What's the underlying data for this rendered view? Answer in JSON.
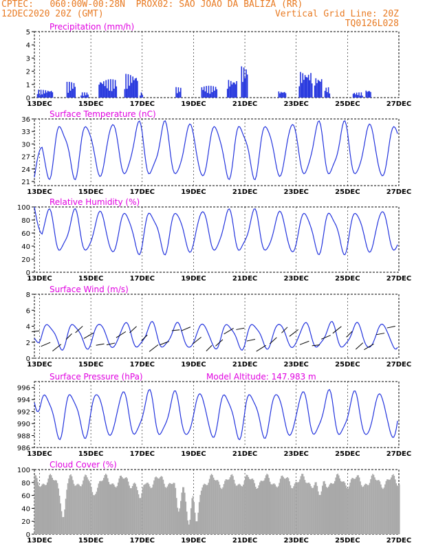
{
  "header": {
    "line1_left": "CPTEC:   060:00W-00:28N  PROX02: SAO JOAO DA BALIZA (RR)",
    "line2_left": "12DEC2020 20Z (GMT)",
    "line2_right": "Vertical Grid Line: 20Z",
    "line3_right": "TQ0126L028"
  },
  "colors": {
    "header": "#e87a22",
    "title": "#e000e0",
    "line": "#2233dd",
    "cloud": "#a9a9a9",
    "grid": "#000000"
  },
  "x_dates": [
    "13DEC",
    "15DEC",
    "17DEC",
    "19DEC",
    "21DEC",
    "23DEC",
    "25DEC",
    "27DEC"
  ],
  "chart_data": [
    {
      "id": "precip",
      "type": "bar",
      "title": "Precipitation (mm/h)",
      "ylim": [
        0,
        5
      ],
      "yticks": [
        0,
        1,
        2,
        3,
        4,
        5
      ],
      "series": [
        {
          "segments": [
            [
              12.9,
              13.5,
              0.6
            ],
            [
              14.05,
              14.4,
              1.2
            ],
            [
              14.6,
              14.9,
              0.4
            ],
            [
              15.3,
              16.0,
              1.4
            ],
            [
              16.3,
              16.8,
              1.8
            ],
            [
              16.9,
              17.0,
              0.4
            ],
            [
              18.3,
              18.5,
              0.8
            ],
            [
              19.3,
              19.9,
              0.9
            ],
            [
              20.3,
              20.7,
              1.4
            ],
            [
              20.85,
              21.1,
              2.4
            ],
            [
              22.3,
              22.6,
              0.5
            ],
            [
              23.1,
              23.6,
              2.0
            ],
            [
              23.7,
              24.0,
              1.6
            ],
            [
              24.1,
              24.3,
              0.8
            ],
            [
              25.2,
              25.6,
              0.4
            ],
            [
              25.7,
              25.9,
              0.6
            ]
          ]
        }
      ]
    },
    {
      "id": "temp",
      "type": "line",
      "title": "Surface Temperature (nC)",
      "ylim": [
        20,
        36
      ],
      "yticks": [
        21,
        24,
        27,
        30,
        33,
        36
      ],
      "series": [
        {
          "amp": 6,
          "mean": 28.5,
          "phase": 0.6,
          "start": 22
        }
      ]
    },
    {
      "id": "rh",
      "type": "line",
      "title": "Relative Humidity (%)",
      "ylim": [
        0,
        100
      ],
      "yticks": [
        0,
        20,
        40,
        60,
        80,
        100
      ],
      "series": [
        {
          "amp": -30,
          "mean": 62,
          "phase": 0.6,
          "start": 100
        }
      ]
    },
    {
      "id": "wind",
      "type": "line",
      "title": "Surface Wind (m/s)",
      "ylim": [
        0,
        8
      ],
      "yticks": [
        0,
        2,
        4,
        6,
        8
      ],
      "series": [
        {
          "amp": 1.5,
          "mean": 2.8,
          "phase": 0.1,
          "start": 2.5
        }
      ]
    },
    {
      "id": "pres",
      "type": "line",
      "title": "Surface Pressure (hPa)",
      "subtitle": "Model Altitude: 147.983 m",
      "ylim": [
        986,
        997
      ],
      "yticks": [
        986,
        988,
        990,
        992,
        994,
        996
      ],
      "series": [
        {
          "amp": 3.5,
          "mean": 991.5,
          "phase": 0.0,
          "start": 993.5
        }
      ]
    },
    {
      "id": "cloud",
      "type": "bar",
      "title": "Cloud Cover (%)",
      "ylim": [
        0,
        100
      ],
      "yticks": [
        0,
        20,
        40,
        60,
        80,
        100
      ],
      "series": [
        {
          "base": 82,
          "dips": [
            [
              13.9,
              25
            ],
            [
              18.8,
              15
            ],
            [
              19.1,
              18
            ],
            [
              18.4,
              35
            ],
            [
              23.9,
              60
            ],
            [
              16.9,
              55
            ],
            [
              15.1,
              60
            ]
          ]
        }
      ]
    }
  ]
}
